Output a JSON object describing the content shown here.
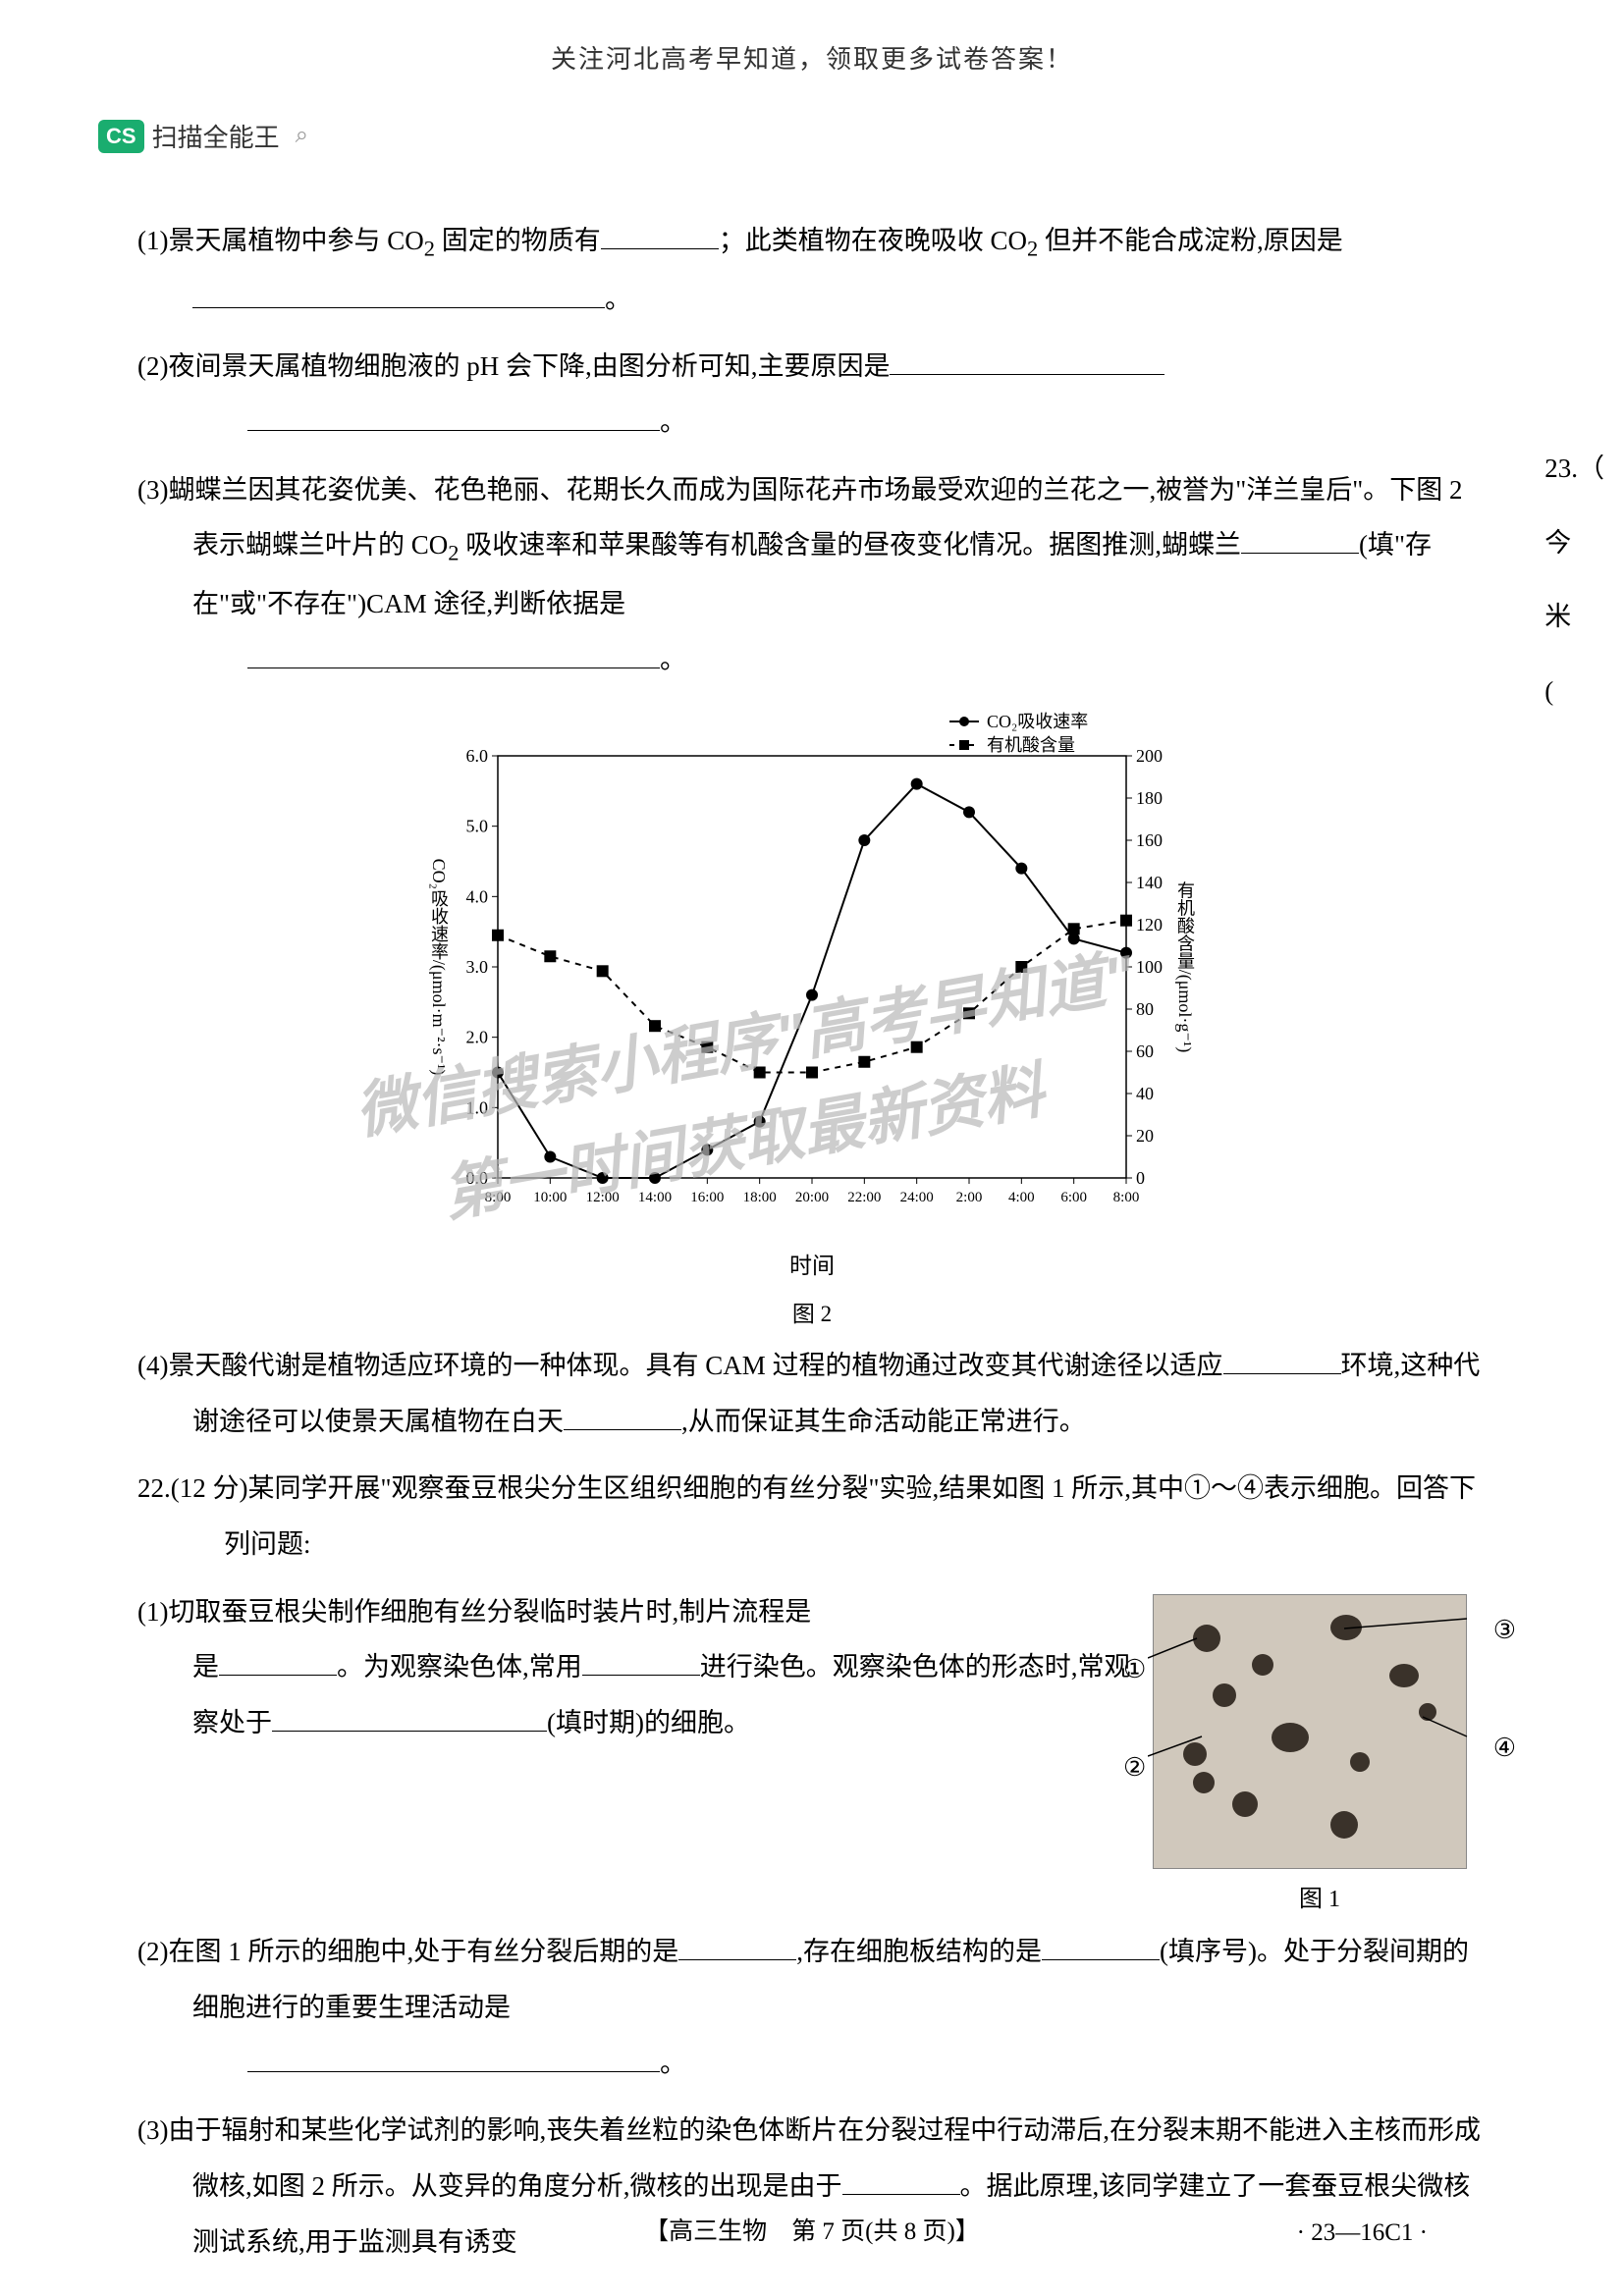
{
  "header": {
    "banner": "关注河北高考早知道，领取更多试卷答案！"
  },
  "app_badge": {
    "icon_text": "CS",
    "label": "扫描全能王"
  },
  "questions": {
    "q21_1_a": "(1)景天属植物中参与 CO",
    "q21_1_sub": "2",
    "q21_1_b": " 固定的物质有",
    "q21_1_c": "；此类植物在夜晚吸收 CO",
    "q21_1_d": " 但并不能合成淀粉,原因是",
    "q21_1_e": "。",
    "q21_2_a": "(2)夜间景天属植物细胞液的 pH 会下降,由图分析可知,主要原因是",
    "q21_2_b": "。",
    "q21_3_a": "(3)蝴蝶兰因其花姿优美、花色艳丽、花期长久而成为国际花卉市场最受欢迎的兰花之一,被誉为\"洋兰皇后\"。下图 2 表示蝴蝶兰叶片的 CO",
    "q21_3_b": " 吸收速率和苹果酸等有机酸含量的昼夜变化情况。据图推测,蝴蝶兰",
    "q21_3_c": "(填\"存在\"或\"不存在\")CAM 途径,判断依据是",
    "q21_3_d": "。",
    "q21_4_a": "(4)景天酸代谢是植物适应环境的一种体现。具有 CAM 过程的植物通过改变其代谢途径以适应",
    "q21_4_b": "环境,这种代谢途径可以使景天属植物在白天",
    "q21_4_c": ",从而保证其生命活动能正常进行。",
    "q22_head": "22.(12 分)某同学开展\"观察蚕豆根尖分生区组织细胞的有丝分裂\"实验,结果如图 1 所示,其中①～④表示细胞。回答下列问题:",
    "q22_1_a": "(1)切取蚕豆根尖制作细胞有丝分裂临时装片时,制片流程是",
    "q22_1_b": "。为观察染色体,常用",
    "q22_1_c": "进行染色。观察染色体的形态时,常观察处于",
    "q22_1_d": "(填时期)的细胞。",
    "q22_2_a": "(2)在图 1 所示的细胞中,处于有丝分裂后期的是",
    "q22_2_b": ",存在细胞板结构的是",
    "q22_2_c": "(填序号)。处于分裂间期的细胞进行的重要生理活动是",
    "q22_2_d": "。",
    "q22_3_a": "(3)由于辐射和某些化学试剂的影响,丧失着丝粒的染色体断片在分裂过程中行动滞后,在分裂末期不能进入主核而形成微核,如图 2 所示。从变异的角度分析,微核的出现是由于",
    "q22_3_b": "。据此原理,该同学建立了一套蚕豆根尖微核测试系统,用于监测具有诱变"
  },
  "chart": {
    "type": "line",
    "legend": {
      "series1": "CO₂吸收速率",
      "series2": "有机酸含量"
    },
    "y1_label": "CO₂吸收速率/(μmol·m⁻²·s⁻¹)",
    "y2_label": "有机酸含量/(μmol·g⁻¹)",
    "x_label": "时间",
    "caption": "图 2",
    "x_ticks": [
      "8:00",
      "10:00",
      "12:00",
      "14:00",
      "16:00",
      "18:00",
      "20:00",
      "22:00",
      "24:00",
      "2:00",
      "4:00",
      "6:00",
      "8:00"
    ],
    "y1_ticks": [
      0,
      1.0,
      2.0,
      3.0,
      4.0,
      5.0,
      6.0
    ],
    "y2_ticks": [
      0,
      20,
      40,
      60,
      80,
      100,
      120,
      140,
      160,
      180,
      200
    ],
    "series1_data": [
      1.5,
      0.3,
      0.0,
      0.0,
      0.4,
      0.8,
      2.6,
      4.8,
      5.6,
      5.2,
      4.4,
      3.4,
      3.2
    ],
    "series2_data": [
      115,
      105,
      98,
      72,
      62,
      50,
      50,
      55,
      62,
      78,
      100,
      118,
      122
    ],
    "colors": {
      "series1": "#000000",
      "series2": "#000000",
      "grid": "#e0e0e0",
      "background": "#ffffff"
    },
    "y1_lim": [
      0,
      6.0
    ],
    "y2_lim": [
      0,
      200
    ],
    "line_width": 2,
    "marker_size": 6
  },
  "micrograph": {
    "caption": "图 1",
    "labels": [
      "①",
      "②",
      "③",
      "④"
    ]
  },
  "watermarks": {
    "line1": "微信搜索小程序\"高考早知道\"",
    "line2": "第一时间获取最新资料"
  },
  "side_fragment": {
    "t1": "23.（",
    "t2": "今",
    "t3": "米",
    "t4": "("
  },
  "footer": {
    "center": "【高三生物　第 7 页(共 8 页)】",
    "code": "· 23—16C1 ·"
  }
}
